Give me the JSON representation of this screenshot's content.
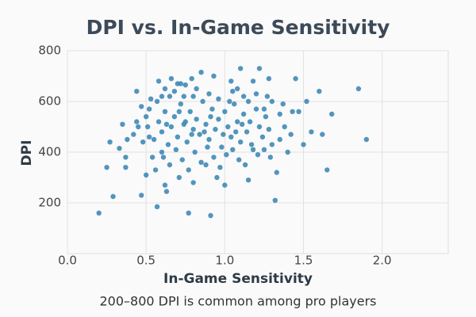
{
  "chart_data": {
    "type": "scatter",
    "title": "DPI vs. In-Game Sensitivity",
    "xlabel": "In-Game Sensitivity",
    "ylabel": "DPI",
    "annotation": "200–800 DPI is common among pro players",
    "color": "#3f89b6",
    "grid": true,
    "xlim": [
      0,
      2.42
    ],
    "ylim": [
      0,
      800
    ],
    "xticks": [
      {
        "value": 0,
        "label": "0.0"
      },
      {
        "value": 0.5,
        "label": "0.5"
      },
      {
        "value": 1,
        "label": "1.0"
      },
      {
        "value": 1.5,
        "label": "1.5"
      },
      {
        "value": 2,
        "label": "2.0"
      }
    ],
    "yticks": [
      200,
      400,
      600,
      800
    ],
    "x": [
      0.2,
      0.25,
      0.27,
      0.29,
      0.33,
      0.35,
      0.37,
      0.37,
      0.38,
      0.42,
      0.44,
      0.44,
      0.47,
      0.48,
      0.5,
      0.51,
      0.52,
      0.53,
      0.54,
      0.56,
      0.57,
      0.58,
      0.6,
      0.62,
      0.63,
      0.65,
      0.66,
      0.7,
      0.72,
      0.75,
      0.77,
      0.79,
      0.8,
      0.85,
      0.88,
      0.91,
      0.93,
      1.0,
      1.04,
      1.05,
      1.08,
      1.1,
      1.15,
      1.18,
      1.22,
      1.25,
      1.28,
      1.3,
      1.32,
      1.33,
      1.35,
      1.4,
      1.43,
      1.45,
      1.47,
      1.5,
      1.52,
      1.55,
      1.6,
      1.62,
      1.65,
      1.68,
      1.85,
      1.9,
      0.55,
      0.58,
      0.6,
      0.62,
      0.64,
      0.66,
      0.68,
      0.7,
      0.72,
      0.74,
      0.76,
      0.78,
      0.8,
      0.82,
      0.84,
      0.86,
      0.88,
      0.9,
      0.92,
      0.94,
      0.96,
      0.98,
      1.0,
      1.02,
      1.04,
      1.06,
      1.08,
      1.1,
      1.12,
      1.14,
      1.16,
      1.18,
      1.2,
      1.22,
      1.24,
      1.26,
      1.28,
      1.3,
      0.57,
      0.61,
      0.65,
      0.69,
      0.73,
      0.77,
      0.81,
      0.85,
      0.89,
      0.93,
      0.97,
      1.01,
      1.05,
      1.09,
      1.13,
      1.17,
      1.21,
      1.25,
      1.29,
      0.6,
      0.68,
      0.74,
      0.82,
      0.9,
      0.96,
      1.03,
      1.12,
      1.2,
      1.27,
      1.35,
      1.38,
      1.42,
      1.37,
      0.5,
      0.47,
      0.45,
      0.52,
      0.71,
      0.8,
      0.62,
      0.95,
      1.15,
      0.75,
      0.87,
      0.99,
      1.07,
      0.79,
      0.63,
      0.71,
      0.91,
      1.11
    ],
    "values": [
      160,
      340,
      440,
      225,
      415,
      510,
      340,
      380,
      450,
      470,
      640,
      520,
      230,
      440,
      310,
      500,
      570,
      610,
      380,
      330,
      185,
      680,
      400,
      650,
      245,
      620,
      690,
      670,
      670,
      665,
      160,
      690,
      620,
      715,
      350,
      150,
      700,
      270,
      680,
      640,
      650,
      730,
      600,
      680,
      730,
      570,
      690,
      600,
      210,
      320,
      550,
      400,
      560,
      690,
      560,
      430,
      600,
      480,
      640,
      470,
      330,
      550,
      650,
      450,
      450,
      520,
      480,
      560,
      430,
      500,
      540,
      460,
      590,
      510,
      440,
      560,
      490,
      530,
      470,
      600,
      510,
      450,
      570,
      490,
      530,
      420,
      560,
      500,
      460,
      590,
      520,
      440,
      550,
      480,
      520,
      410,
      570,
      500,
      460,
      540,
      490,
      430,
      600,
      380,
      350,
      410,
      370,
      330,
      400,
      360,
      420,
      380,
      340,
      390,
      410,
      370,
      350,
      430,
      390,
      410,
      380,
      620,
      640,
      620,
      650,
      630,
      610,
      600,
      620,
      630,
      620,
      450,
      500,
      470,
      590,
      540,
      580,
      500,
      460,
      300,
      280,
      270,
      300,
      290,
      520,
      480,
      470,
      480,
      470,
      510,
      560,
      540,
      510
    ]
  }
}
